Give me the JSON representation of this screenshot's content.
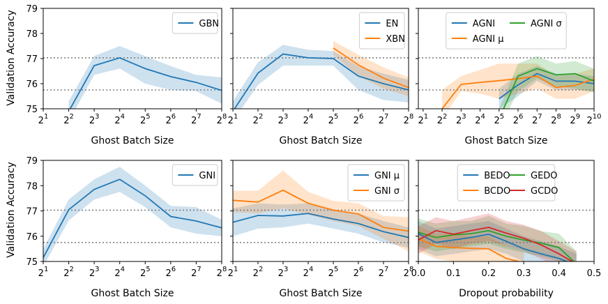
{
  "chart_data": {
    "layout": "2x3 grid of line charts with shaded confidence bands",
    "ylabel": "Validation Accuracy",
    "ylim": [
      75,
      79
    ],
    "yticks": [
      75,
      76,
      77,
      78,
      79
    ],
    "reference_lines": [
      77.03,
      75.75
    ],
    "colors": {
      "blue": "#1f77b4",
      "orange": "#ff7f0e",
      "green": "#2ca02c",
      "red": "#d62728"
    },
    "panels": [
      {
        "id": "top-left",
        "type": "line",
        "xlabel": "Ghost Batch Size",
        "x_scale": "log2",
        "xlim": [
          1,
          8
        ],
        "xticks": [
          {
            "e": 1,
            "label": "1"
          },
          {
            "e": 2,
            "label": "2"
          },
          {
            "e": 3,
            "label": "3"
          },
          {
            "e": 4,
            "label": "4"
          },
          {
            "e": 5,
            "label": "5"
          },
          {
            "e": 6,
            "label": "6"
          },
          {
            "e": 7,
            "label": "7"
          },
          {
            "e": 8,
            "label": "8"
          }
        ],
        "show_yticklabels": true,
        "legend_pos": "top-right",
        "series": [
          {
            "name": "GBN",
            "color": "#1f77b4",
            "x": [
              2,
              3,
              4,
              5,
              6,
              7,
              8
            ],
            "y": [
              74.9,
              76.72,
              77.03,
              76.6,
              76.28,
              76.05,
              75.73
            ],
            "lower": [
              74.5,
              76.35,
              76.6,
              76.0,
              75.75,
              75.7,
              75.2
            ],
            "upper": [
              75.3,
              77.1,
              77.5,
              77.1,
              76.7,
              76.35,
              76.25
            ]
          }
        ]
      },
      {
        "id": "top-middle",
        "type": "line",
        "xlabel": "Ghost Batch Size",
        "x_scale": "log2",
        "xlim": [
          1,
          8
        ],
        "xticks": [
          {
            "e": 1,
            "label": "1"
          },
          {
            "e": 2,
            "label": "2"
          },
          {
            "e": 3,
            "label": "3"
          },
          {
            "e": 4,
            "label": "4"
          },
          {
            "e": 5,
            "label": "5"
          },
          {
            "e": 6,
            "label": "6"
          },
          {
            "e": 7,
            "label": "7"
          },
          {
            "e": 8,
            "label": "8"
          }
        ],
        "show_yticklabels": false,
        "legend_pos": "top-right",
        "series": [
          {
            "name": "EN",
            "color": "#1f77b4",
            "x": [
              1,
              2,
              3,
              4,
              5,
              6,
              7,
              8
            ],
            "y": [
              74.9,
              76.42,
              77.18,
              77.03,
              77.0,
              76.3,
              76.0,
              75.75
            ],
            "lower": [
              74.5,
              75.95,
              76.72,
              76.72,
              76.72,
              75.75,
              75.35,
              75.25
            ],
            "upper": [
              75.3,
              76.85,
              77.55,
              77.35,
              77.3,
              76.7,
              76.4,
              76.15
            ]
          },
          {
            "name": "XBN",
            "color": "#ff7f0e",
            "x": [
              5,
              6,
              7,
              8
            ],
            "y": [
              77.42,
              76.75,
              76.22,
              75.85
            ],
            "lower": [
              77.15,
              76.3,
              75.8,
              75.5
            ],
            "upper": [
              77.7,
              77.15,
              76.65,
              76.25
            ]
          }
        ]
      },
      {
        "id": "top-right",
        "type": "line",
        "xlabel": "Ghost Batch Size",
        "x_scale": "log2",
        "xlim": [
          0.75,
          10
        ],
        "xticks": [
          {
            "e": 1,
            "label": "1"
          },
          {
            "e": 2,
            "label": "2"
          },
          {
            "e": 3,
            "label": "3"
          },
          {
            "e": 4,
            "label": "4"
          },
          {
            "e": 5,
            "label": "5"
          },
          {
            "e": 6,
            "label": "6"
          },
          {
            "e": 7,
            "label": "7"
          },
          {
            "e": 8,
            "label": "8"
          },
          {
            "e": 9,
            "label": "9"
          },
          {
            "e": 10,
            "label": "10"
          }
        ],
        "show_yticklabels": false,
        "legend_pos": "top",
        "legend_cols": 2,
        "series": [
          {
            "name": "AGNI",
            "color": "#1f77b4",
            "x": [
              5,
              6,
              7,
              8,
              9,
              10
            ],
            "y": [
              75.4,
              75.95,
              76.4,
              76.1,
              76.1,
              76.0
            ],
            "lower": [
              75.0,
              75.5,
              76.1,
              75.75,
              75.75,
              75.7
            ],
            "upper": [
              75.8,
              76.4,
              76.7,
              76.4,
              76.4,
              76.3
            ]
          },
          {
            "name": "AGNI μ",
            "color": "#ff7f0e",
            "x": [
              2,
              3,
              4,
              5,
              6,
              7,
              8,
              9,
              10
            ],
            "y": [
              75.0,
              75.97,
              76.05,
              76.12,
              76.2,
              76.3,
              75.85,
              75.93,
              76.18
            ],
            "lower": [
              74.6,
              75.7,
              75.6,
              75.4,
              75.6,
              75.8,
              75.4,
              75.4,
              75.7
            ],
            "upper": [
              75.75,
              76.3,
              76.55,
              76.8,
              76.8,
              76.8,
              76.3,
              76.4,
              76.6
            ]
          },
          {
            "name": "AGNI σ",
            "color": "#2ca02c",
            "x": [
              5,
              6,
              7,
              8,
              9,
              10
            ],
            "y": [
              74.6,
              76.3,
              76.6,
              76.35,
              76.4,
              76.1
            ],
            "lower": [
              74.2,
              75.7,
              76.2,
              75.9,
              75.8,
              75.65
            ],
            "upper": [
              75.0,
              76.8,
              77.1,
              76.8,
              76.9,
              76.6
            ]
          }
        ]
      },
      {
        "id": "bottom-left",
        "type": "line",
        "xlabel": "Ghost Batch Size",
        "x_scale": "log2",
        "xlim": [
          1,
          8
        ],
        "xticks": [
          {
            "e": 1,
            "label": "1"
          },
          {
            "e": 2,
            "label": "2"
          },
          {
            "e": 3,
            "label": "3"
          },
          {
            "e": 4,
            "label": "4"
          },
          {
            "e": 5,
            "label": "5"
          },
          {
            "e": 6,
            "label": "6"
          },
          {
            "e": 7,
            "label": "7"
          },
          {
            "e": 8,
            "label": "8"
          }
        ],
        "show_yticklabels": true,
        "legend_pos": "top-right",
        "series": [
          {
            "name": "GNI",
            "color": "#1f77b4",
            "x": [
              1,
              2,
              3,
              4,
              5,
              6,
              7,
              8
            ],
            "y": [
              75.15,
              77.05,
              77.85,
              78.25,
              77.6,
              76.78,
              76.6,
              76.33
            ],
            "lower": [
              74.8,
              76.62,
              77.45,
              77.75,
              77.15,
              76.35,
              76.1,
              76.0
            ],
            "upper": [
              75.5,
              77.45,
              78.25,
              78.75,
              78.0,
              77.2,
              77.15,
              76.65
            ]
          }
        ]
      },
      {
        "id": "bottom-middle",
        "type": "line",
        "xlabel": "Ghost Batch Size",
        "x_scale": "log2",
        "xlim": [
          1,
          8
        ],
        "xticks": [
          {
            "e": 1,
            "label": "1"
          },
          {
            "e": 2,
            "label": "2"
          },
          {
            "e": 3,
            "label": "3"
          },
          {
            "e": 4,
            "label": "4"
          },
          {
            "e": 5,
            "label": "5"
          },
          {
            "e": 6,
            "label": "6"
          },
          {
            "e": 7,
            "label": "7"
          },
          {
            "e": 8,
            "label": "8"
          }
        ],
        "show_yticklabels": false,
        "legend_pos": "top-right",
        "series": [
          {
            "name": "GNI μ",
            "color": "#1f77b4",
            "x": [
              1,
              2,
              3,
              4,
              5,
              6,
              7,
              8
            ],
            "y": [
              76.55,
              76.82,
              76.8,
              76.9,
              76.68,
              76.5,
              76.18,
              75.95
            ],
            "lower": [
              76.0,
              76.3,
              76.35,
              76.5,
              76.3,
              76.1,
              75.75,
              75.55
            ],
            "upper": [
              77.1,
              77.3,
              77.25,
              77.3,
              77.05,
              76.9,
              76.6,
              76.35
            ]
          },
          {
            "name": "GNI σ",
            "color": "#ff7f0e",
            "x": [
              1,
              2,
              3,
              4,
              5,
              6,
              7,
              8
            ],
            "y": [
              77.42,
              77.35,
              77.82,
              77.3,
              77.03,
              76.88,
              76.35,
              76.2
            ],
            "lower": [
              76.95,
              76.9,
              77.1,
              76.85,
              76.6,
              76.4,
              75.9,
              75.4
            ],
            "upper": [
              77.8,
              77.8,
              78.6,
              77.75,
              77.4,
              77.3,
              76.8,
              76.75
            ]
          }
        ]
      },
      {
        "id": "bottom-right",
        "type": "line",
        "xlabel": "Dropout probability",
        "x_scale": "linear",
        "xlim": [
          0.0,
          0.5
        ],
        "xticks": [
          {
            "v": 0.0,
            "label": "0.0"
          },
          {
            "v": 0.1,
            "label": "0.1"
          },
          {
            "v": 0.2,
            "label": "0.2"
          },
          {
            "v": 0.3,
            "label": "0.3"
          },
          {
            "v": 0.4,
            "label": "0.4"
          },
          {
            "v": 0.5,
            "label": "0.5"
          }
        ],
        "show_yticklabels": false,
        "legend_pos": "top",
        "legend_cols": 2,
        "series": [
          {
            "name": "BEDO",
            "color": "#1f77b4",
            "x": [
              0.0,
              0.05,
              0.1,
              0.15,
              0.2,
              0.25,
              0.3,
              0.35,
              0.4,
              0.45
            ],
            "y": [
              76.1,
              75.75,
              75.85,
              75.95,
              76.08,
              75.8,
              75.5,
              75.3,
              75.12,
              74.85
            ],
            "lower": [
              75.5,
              75.2,
              75.3,
              75.4,
              75.5,
              75.3,
              75.0,
              74.8,
              74.6,
              74.4
            ],
            "upper": [
              76.6,
              76.3,
              76.4,
              76.5,
              76.6,
              76.3,
              76.0,
              75.8,
              75.6,
              75.3
            ]
          },
          {
            "name": "BCDO",
            "color": "#ff7f0e",
            "x": [
              0.0,
              0.05,
              0.1,
              0.15,
              0.2,
              0.25,
              0.3
            ],
            "y": [
              75.9,
              75.6,
              75.55,
              75.52,
              75.5,
              75.12,
              74.95
            ],
            "lower": [
              75.4,
              75.1,
              75.0,
              75.0,
              75.0,
              74.6,
              74.5
            ],
            "upper": [
              76.4,
              76.1,
              76.1,
              76.0,
              76.0,
              75.6,
              75.4
            ]
          },
          {
            "name": "GEDO",
            "color": "#2ca02c",
            "x": [
              0.0,
              0.05,
              0.1,
              0.15,
              0.2,
              0.25,
              0.3,
              0.35,
              0.4,
              0.45
            ],
            "y": [
              76.15,
              75.95,
              76.05,
              76.1,
              76.22,
              76.0,
              75.85,
              75.72,
              75.55,
              74.9
            ],
            "lower": [
              75.6,
              75.4,
              75.5,
              75.6,
              75.7,
              75.5,
              75.35,
              75.2,
              75.0,
              74.4
            ],
            "upper": [
              76.7,
              76.5,
              76.6,
              76.6,
              76.8,
              76.5,
              76.4,
              76.2,
              76.1,
              75.4
            ]
          },
          {
            "name": "GCDO",
            "color": "#d62728",
            "x": [
              0.0,
              0.05,
              0.1,
              0.15,
              0.2,
              0.25,
              0.3,
              0.35,
              0.4,
              0.45
            ],
            "y": [
              75.85,
              76.22,
              76.08,
              76.22,
              76.35,
              76.12,
              75.92,
              75.65,
              75.3,
              74.9
            ],
            "lower": [
              75.3,
              75.7,
              75.5,
              75.7,
              75.8,
              75.6,
              75.4,
              75.1,
              74.8,
              74.4
            ],
            "upper": [
              76.4,
              76.75,
              76.6,
              76.75,
              76.9,
              76.6,
              76.45,
              76.2,
              75.8,
              75.4
            ]
          }
        ]
      }
    ]
  }
}
